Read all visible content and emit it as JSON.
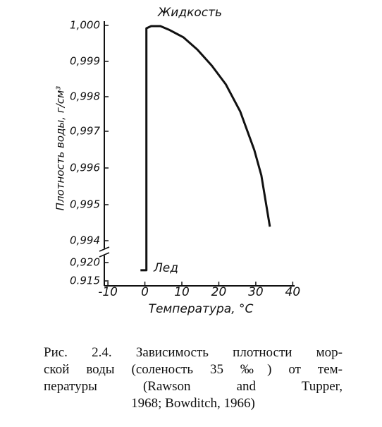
{
  "chart_data": {
    "type": "line",
    "x_label": "Температура, °С",
    "y_label": "Плотность воды, г/см³",
    "annotations": [
      "Жидкость",
      "Лед"
    ],
    "caption_lines": [
      "Рис. 2.4. Зависимость плотности мор-",
      "ской воды (соленость 35 ‰) от тем-",
      "пературы (Rawson and Tupper,",
      "1968; Bowditch, 1966)"
    ],
    "xlim": [
      -12.5,
      40.5
    ],
    "xticks": [
      -10,
      0,
      10,
      20,
      30,
      40
    ],
    "ylim": [
      0.915,
      1.0
    ],
    "yticks": [
      0.915,
      {
        "value": 0.92,
        "label": "0,920"
      },
      {
        "value": 0.994,
        "label": "0,994"
      },
      {
        "value": 0.995,
        "label": "0,995"
      },
      {
        "value": 0.996,
        "label": "0,996"
      },
      {
        "value": 0.997,
        "label": "0,997"
      },
      {
        "value": 0.998,
        "label": "0,998"
      },
      {
        "value": 0.999,
        "label": "0,999"
      },
      {
        "value": 1,
        "label": "1,000"
      }
    ],
    "series": [
      {
        "color": "#111111",
        "x": [
          -1.2,
          0.4,
          0.4,
          1.7,
          4.2,
          6.5,
          10.4,
          14.2,
          18.1,
          21.9,
          25.8,
          29.6,
          31.5,
          33.8
        ],
        "values": [
          0.9179,
          0.9179,
          0.99992,
          0.99998,
          0.99998,
          0.99988,
          0.99967,
          0.99933,
          0.99888,
          0.99835,
          0.99757,
          0.99649,
          0.9958,
          0.99439
        ]
      }
    ]
  }
}
